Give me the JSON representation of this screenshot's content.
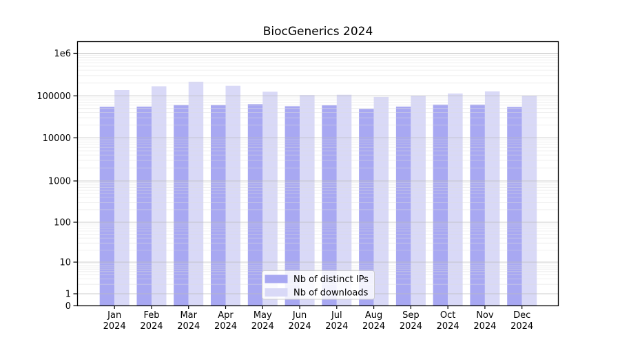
{
  "figure": {
    "title": "BiocGenerics 2024"
  },
  "colors": {
    "distinct_ips_bar": "#a8a8f2",
    "downloads_bar": "#d9d9f7",
    "major_gridline": "#bbbbbb",
    "minor_gridline": "#dddddd",
    "axis_spine": "#000000",
    "legend_border": "#cccccc",
    "legend_background": "rgba(255,255,255,0.85)"
  },
  "chart_data": {
    "type": "bar",
    "title": "BiocGenerics 2024",
    "yscale": "symlog",
    "ylim": [
      0,
      1900000
    ],
    "grid": true,
    "legend_position": "lower center",
    "xlabel": "",
    "ylabel": "",
    "categories": [
      "Jan 2024",
      "Feb 2024",
      "Mar 2024",
      "Apr 2024",
      "May 2024",
      "Jun 2024",
      "Jul 2024",
      "Aug 2024",
      "Sep 2024",
      "Oct 2024",
      "Nov 2024",
      "Dec 2024"
    ],
    "series": [
      {
        "name": "Nb of distinct IPs",
        "color": "#a8a8f2",
        "values": [
          55000,
          55500,
          60500,
          60500,
          63500,
          56500,
          59500,
          49000,
          55500,
          62000,
          62000,
          54500
        ]
      },
      {
        "name": "Nb of downloads",
        "color": "#d9d9f7",
        "values": [
          136000,
          168000,
          215000,
          172000,
          125000,
          104000,
          106000,
          94000,
          101000,
          114000,
          128000,
          101000
        ]
      }
    ],
    "ytick_labels": [
      "0",
      "1",
      "10",
      "100",
      "1000",
      "10000",
      "100000",
      "1e6"
    ]
  }
}
